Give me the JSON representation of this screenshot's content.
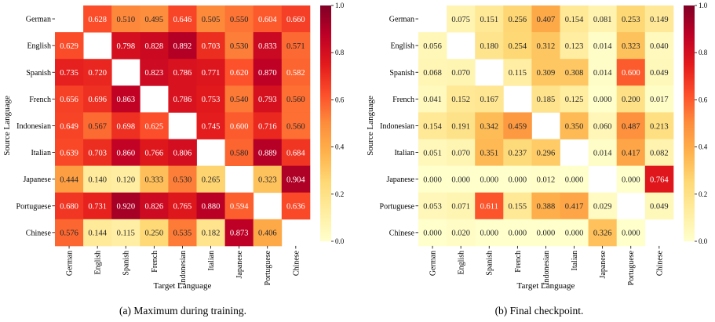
{
  "chart_data": [
    {
      "type": "heatmap",
      "caption": "(a) Maximum during training.",
      "xlabel": "Target Language",
      "ylabel": "Source Language",
      "x_categories": [
        "German",
        "English",
        "Spanish",
        "French",
        "Indonesian",
        "Italian",
        "Japanese",
        "Portuguese",
        "Chinese"
      ],
      "y_categories": [
        "German",
        "English",
        "Spanish",
        "French",
        "Indonesian",
        "Italian",
        "Japanese",
        "Portuguese",
        "Chinese"
      ],
      "values": [
        [
          null,
          0.628,
          0.51,
          0.495,
          0.646,
          0.505,
          0.55,
          0.604,
          0.66
        ],
        [
          0.629,
          null,
          0.798,
          0.828,
          0.892,
          0.703,
          0.53,
          0.833,
          0.571
        ],
        [
          0.735,
          0.72,
          null,
          0.823,
          0.786,
          0.771,
          0.62,
          0.87,
          0.582
        ],
        [
          0.656,
          0.696,
          0.863,
          null,
          0.786,
          0.753,
          0.54,
          0.793,
          0.56
        ],
        [
          0.649,
          0.567,
          0.698,
          0.625,
          null,
          0.745,
          0.6,
          0.716,
          0.56
        ],
        [
          0.639,
          0.703,
          0.86,
          0.766,
          0.806,
          null,
          0.58,
          0.889,
          0.684
        ],
        [
          0.444,
          0.14,
          0.12,
          0.333,
          0.53,
          0.265,
          null,
          0.323,
          0.904
        ],
        [
          0.68,
          0.731,
          0.92,
          0.826,
          0.765,
          0.88,
          0.594,
          null,
          0.636
        ],
        [
          0.576,
          0.144,
          0.115,
          0.25,
          0.535,
          0.182,
          0.873,
          0.406,
          null
        ]
      ],
      "colorbar": {
        "range": [
          0,
          1
        ],
        "ticks": [
          "0.0",
          "0.2",
          "0.4",
          "0.6",
          "0.8",
          "1.0"
        ]
      },
      "colormap": [
        "#ffffcc",
        "#ffeda0",
        "#fed976",
        "#feb24c",
        "#fd8d3c",
        "#fc4e2a",
        "#e31a1c",
        "#bd0026",
        "#800026"
      ]
    },
    {
      "type": "heatmap",
      "caption": "(b) Final checkpoint.",
      "xlabel": "Target Language",
      "ylabel": "Source Language",
      "x_categories": [
        "German",
        "English",
        "Spanish",
        "French",
        "Indonesian",
        "Italian",
        "Japanese",
        "Portuguese",
        "Chinese"
      ],
      "y_categories": [
        "German",
        "English",
        "Spanish",
        "French",
        "Indonesian",
        "Italian",
        "Japanese",
        "Portuguese",
        "Chinese"
      ],
      "values": [
        [
          null,
          0.075,
          0.151,
          0.256,
          0.407,
          0.154,
          0.081,
          0.253,
          0.149
        ],
        [
          0.056,
          null,
          0.18,
          0.254,
          0.312,
          0.123,
          0.014,
          0.323,
          0.04
        ],
        [
          0.068,
          0.07,
          null,
          0.115,
          0.309,
          0.308,
          0.014,
          0.6,
          0.049
        ],
        [
          0.041,
          0.152,
          0.167,
          null,
          0.185,
          0.125,
          0.0,
          0.2,
          0.017
        ],
        [
          0.154,
          0.191,
          0.342,
          0.459,
          null,
          0.35,
          0.06,
          0.487,
          0.213
        ],
        [
          0.051,
          0.07,
          0.351,
          0.237,
          0.296,
          null,
          0.014,
          0.417,
          0.082
        ],
        [
          0.0,
          0.0,
          0.0,
          0.0,
          0.012,
          0.0,
          null,
          0.0,
          0.764
        ],
        [
          0.053,
          0.071,
          0.611,
          0.155,
          0.388,
          0.417,
          0.029,
          null,
          0.049
        ],
        [
          0.0,
          0.02,
          0.0,
          0.0,
          0.0,
          0.0,
          0.326,
          0.0,
          null
        ]
      ],
      "colorbar": {
        "range": [
          0,
          1
        ],
        "ticks": [
          "0.0",
          "0.2",
          "0.4",
          "0.6",
          "0.8",
          "1.0"
        ]
      },
      "colormap": [
        "#ffffcc",
        "#ffeda0",
        "#fed976",
        "#feb24c",
        "#fd8d3c",
        "#fc4e2a",
        "#e31a1c",
        "#bd0026",
        "#800026"
      ]
    }
  ]
}
